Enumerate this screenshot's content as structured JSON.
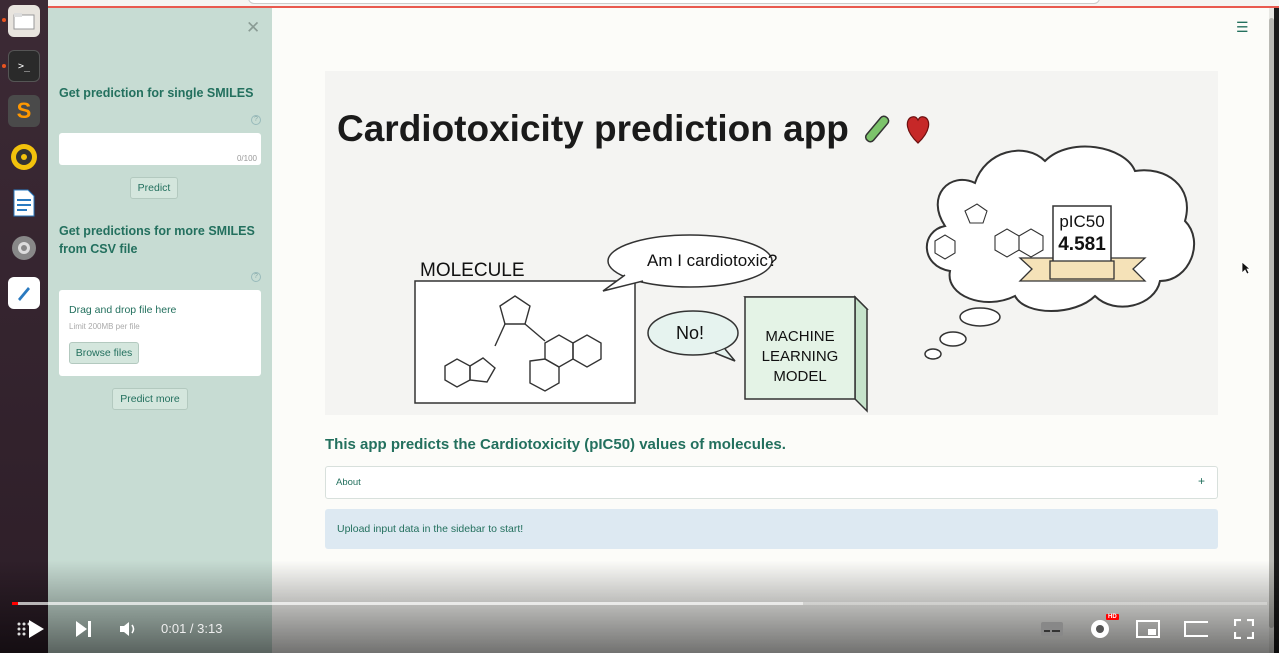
{
  "sidebar": {
    "single_title": "Get prediction for single SMILES",
    "smiles_placeholder": "",
    "char_count": "0/100",
    "predict_label": "Predict",
    "csv_title_line1": "Get predictions for more SMILES",
    "csv_title_line2": "from CSV file",
    "drop_title": "Drag and drop file here",
    "drop_limit": "Limit 200MB per file",
    "browse_label": "Browse files",
    "predict_more_label": "Predict more"
  },
  "banner": {
    "title": "Cardiotoxicity prediction app",
    "molecule_label": "MOLECULE",
    "question": "Am I cardiotoxic?",
    "answer": "No!",
    "model_line1": "MACHINE",
    "model_line2": "LEARNING",
    "model_line3": "MODEL",
    "metric_label": "pIC50",
    "metric_value": "4.581"
  },
  "main": {
    "tagline": "This app predicts the Cardiotoxicity (pIC50) values of molecules.",
    "about_label": "About",
    "info_text": "Upload input data in the sidebar to start!"
  },
  "player": {
    "time": "0:01 / 3:13",
    "hd_badge": "HD",
    "progress_played": 0.005,
    "progress_buffered": 0.63
  },
  "colors": {
    "accent": "#23705e",
    "sidebar_bg": "#c7dcd3",
    "progress_red": "#ff0000"
  }
}
